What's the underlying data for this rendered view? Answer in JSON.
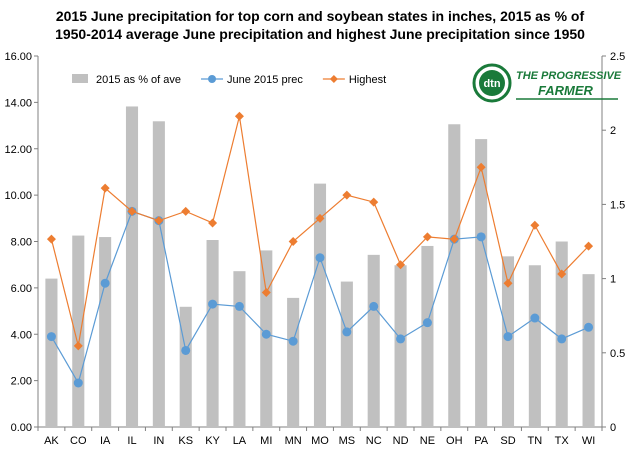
{
  "chart_data": {
    "type": "bar",
    "title_line1": "2015 June precipitation for top corn and soybean states in inches, 2015 as % of",
    "title_line2": "1950-2014 average June precipitation and highest June precipitation since 1950",
    "categories": [
      "AK",
      "CO",
      "IA",
      "IL",
      "IN",
      "KS",
      "KY",
      "LA",
      "MI",
      "MN",
      "MO",
      "MS",
      "NC",
      "ND",
      "NE",
      "OH",
      "PA",
      "SD",
      "TN",
      "TX",
      "WI"
    ],
    "series": [
      {
        "name": "2015 as % of ave",
        "type": "bar",
        "axis": "right",
        "color": "#c0c0c0",
        "values": [
          1.0,
          1.29,
          1.28,
          2.16,
          2.06,
          0.81,
          1.26,
          1.05,
          1.19,
          0.87,
          1.64,
          0.98,
          1.16,
          1.09,
          1.22,
          2.04,
          1.94,
          1.15,
          1.09,
          1.25,
          1.03
        ]
      },
      {
        "name": "June 2015 prec",
        "type": "line",
        "axis": "left",
        "color": "#5b9bd5",
        "values": [
          3.9,
          1.9,
          6.2,
          9.3,
          8.9,
          3.3,
          5.3,
          5.2,
          4.0,
          3.7,
          7.3,
          4.1,
          5.2,
          3.8,
          4.5,
          8.1,
          8.2,
          3.9,
          4.7,
          3.8,
          4.3
        ]
      },
      {
        "name": "Highest",
        "type": "line",
        "axis": "left",
        "color": "#ed7d31",
        "values": [
          8.1,
          3.5,
          10.3,
          9.3,
          8.9,
          9.3,
          8.8,
          13.4,
          5.8,
          8.0,
          9.0,
          10.0,
          9.7,
          7.0,
          8.2,
          8.1,
          11.2,
          6.2,
          8.7,
          6.6,
          7.8
        ]
      }
    ],
    "y_left": {
      "min": 0,
      "max": 16,
      "step": 2,
      "tick_labels": [
        "0.00",
        "2.00",
        "4.00",
        "6.00",
        "8.00",
        "10.00",
        "12.00",
        "14.00",
        "16.00"
      ]
    },
    "y_right": {
      "min": 0,
      "max": 2.5,
      "step": 0.5,
      "tick_labels": [
        "0",
        "0.5",
        "1",
        "1.5",
        "2",
        "2.5"
      ]
    },
    "legend_position": "top-left",
    "grid": false
  },
  "logo": {
    "initials": "dtn",
    "name_line1": "THE PROGRESSIVE",
    "name_line2": "FARMER",
    "accent": "#1a7a3a"
  },
  "colors": {
    "axis": "#808080",
    "text": "#000000"
  }
}
